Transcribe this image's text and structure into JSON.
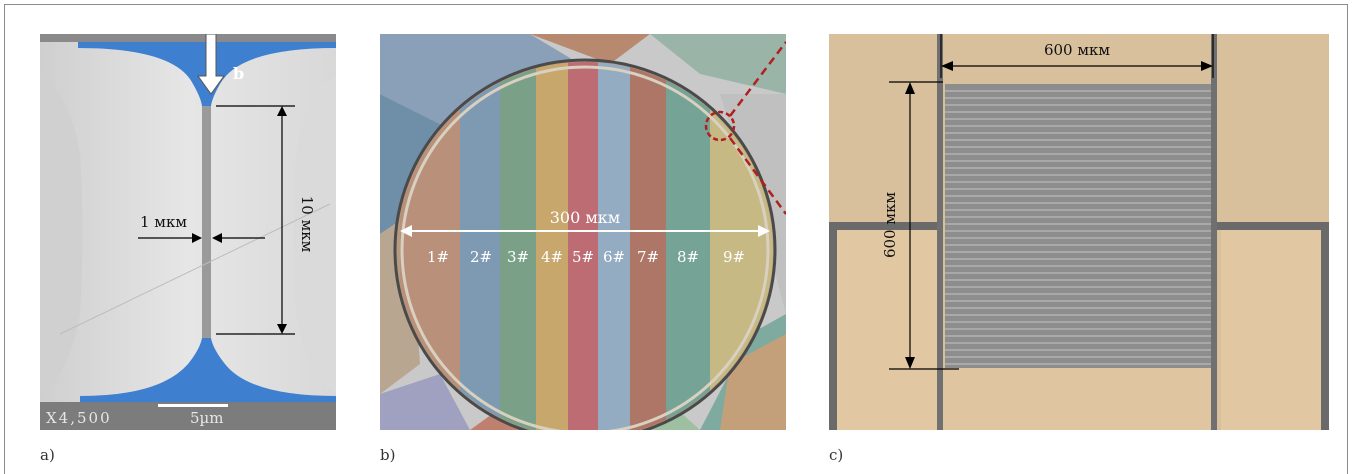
{
  "figure": {
    "panel_a": {
      "letter": "a)",
      "arrow_label": "b",
      "width_label": "1 мкм",
      "length_label": "10 мкм",
      "sem_magnification": "X4,500",
      "sem_scale": "5µm"
    },
    "panel_b": {
      "letter": "b)",
      "diameter_label": "300 мкм",
      "channels": [
        "1#",
        "2#",
        "3#",
        "4#",
        "5#",
        "6#",
        "7#",
        "8#",
        "9#"
      ],
      "channel_colors": [
        "#b07a6a",
        "#6a8fb0",
        "#6aa07a",
        "#c9a055",
        "#c0606a",
        "#8aa6c0",
        "#b06a5a",
        "#6aa090",
        "#c9b870"
      ]
    },
    "panel_c": {
      "letter": "c)",
      "width_label": "600 мкм",
      "height_label": "600 мкм"
    },
    "accent_blue": "#3f7fd0",
    "accent_red": "#b02020"
  }
}
